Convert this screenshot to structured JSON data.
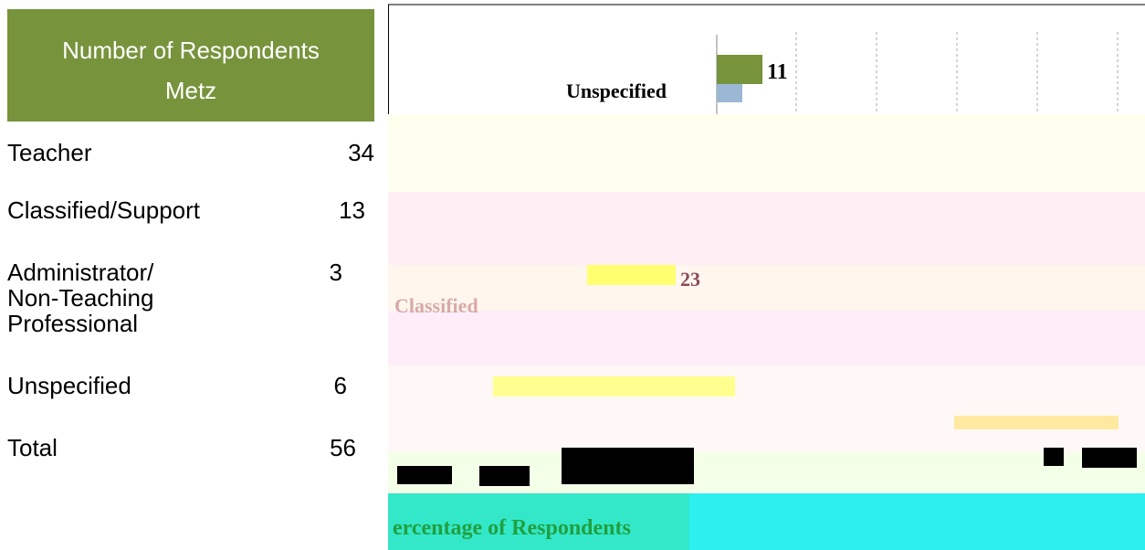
{
  "table": {
    "header": [
      "Number of Respondents",
      "Metz"
    ],
    "rows": [
      [
        "Teacher",
        "34"
      ],
      [
        "Classified/Support",
        "13"
      ],
      [
        "Administrator/\nNon-Teaching\nProfessional",
        "3"
      ],
      [
        "Unspecified",
        "6"
      ],
      [
        "Total",
        "56"
      ]
    ]
  },
  "figure": {
    "labels": [
      "Unspecified",
      "Classified"
    ],
    "value_labels": [
      "11",
      "23"
    ],
    "axis_title": "ercentage of Respondents"
  }
}
